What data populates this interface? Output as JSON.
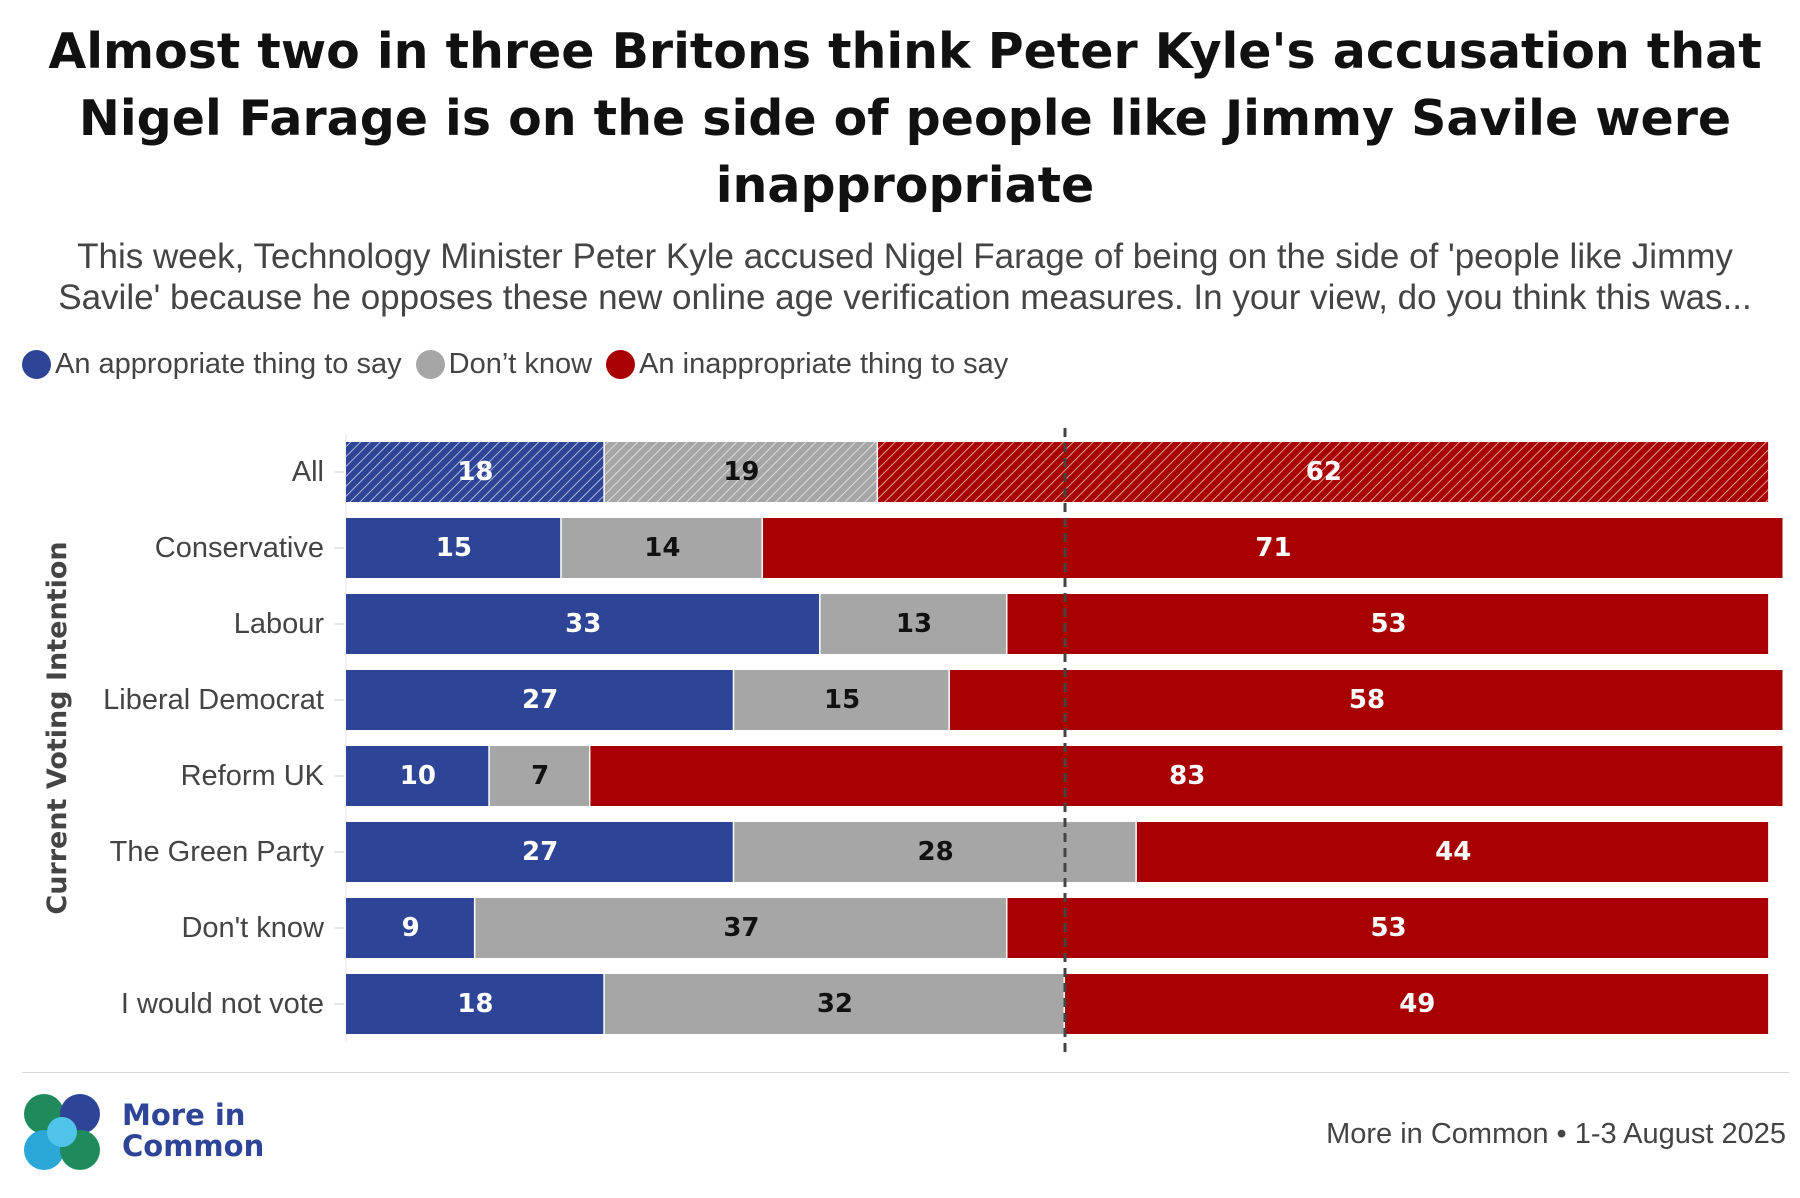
{
  "title": "Almost two in three Britons think Peter Kyle's accusation that Nigel Farage is on the side of people like Jimmy Savile were inappropriate",
  "subtitle": "This week, Technology Minister Peter Kyle accused Nigel Farage of being on the side of 'people like Jimmy Savile' because he opposes these new online age verification measures. In your view, do you think this was...",
  "colors": {
    "appropriate": "#2e4597",
    "dont_know": "#a6a6a6",
    "inappropriate": "#a80000",
    "text_dark": "#111111",
    "text_muted": "#444444"
  },
  "legend": [
    {
      "label": "An appropriate thing to say",
      "color": "#2e4597"
    },
    {
      "label": "Don’t know",
      "color": "#a6a6a6"
    },
    {
      "label": "An inappropriate thing to say",
      "color": "#a80000"
    }
  ],
  "chart_data": {
    "type": "bar",
    "orientation": "horizontal",
    "stacked": true,
    "ylabel": "Current Voting Intention",
    "xlabel": "",
    "xlim": [
      0,
      100
    ],
    "categories": [
      "All",
      "Conservative",
      "Labour",
      "Liberal Democrat",
      "Reform UK",
      "The Green Party",
      "Don't know",
      "I would not vote"
    ],
    "series": [
      {
        "name": "An appropriate thing to say",
        "color": "#2e4597",
        "values": [
          18,
          15,
          33,
          27,
          10,
          27,
          9,
          18
        ]
      },
      {
        "name": "Don’t know",
        "color": "#a6a6a6",
        "values": [
          19,
          14,
          13,
          15,
          7,
          28,
          37,
          32
        ]
      },
      {
        "name": "An inappropriate thing to say",
        "color": "#a80000",
        "values": [
          62,
          71,
          53,
          58,
          83,
          44,
          53,
          49
        ]
      }
    ],
    "hatched_categories": [
      "All"
    ],
    "reference_line": {
      "value": 50,
      "style": "dashed"
    },
    "legend_position": "top-left",
    "grid": false
  },
  "footer": {
    "logo_line1": "More in",
    "logo_line2": "Common",
    "source": "More in Common • 1-3 August 2025"
  }
}
